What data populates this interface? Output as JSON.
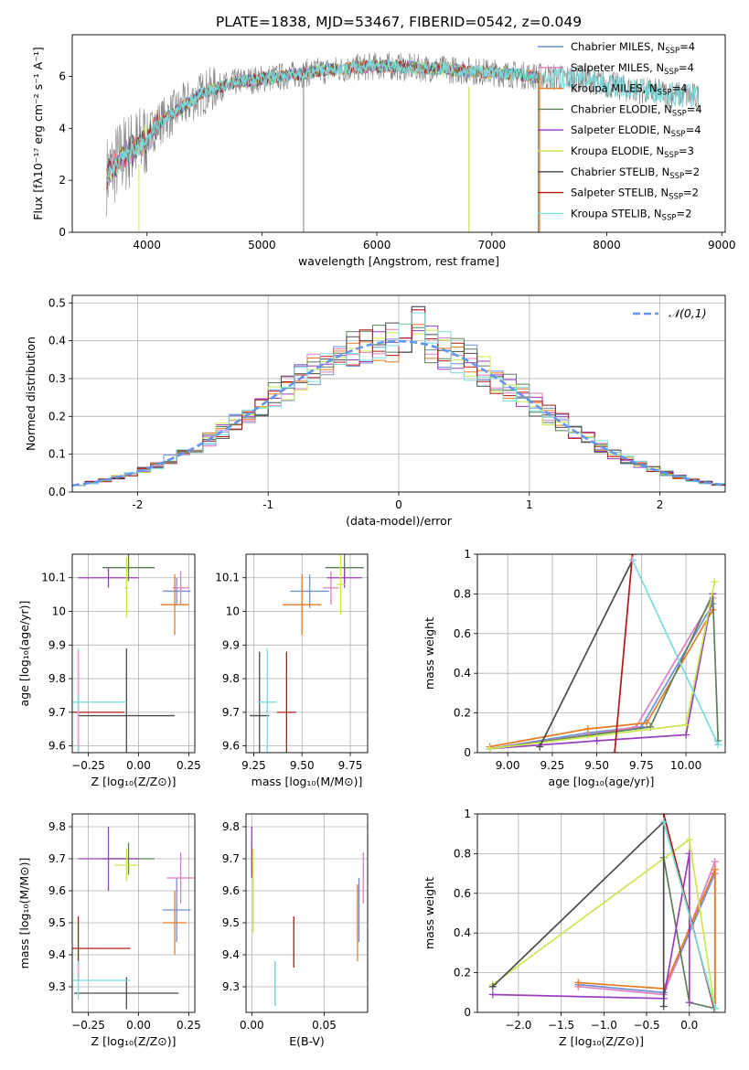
{
  "figure_title": "PLATE=1838, MJD=53467, FIBERID=0542, z=0.049",
  "colors": {
    "chabrier_miles": "#6f8fd8",
    "salpeter_miles": "#e07fc0",
    "kroupa_miles": "#e87a22",
    "chabrier_elodie": "#5a7f5a",
    "salpeter_elodie": "#9a3cbf",
    "kroupa_elodie": "#c8e850",
    "chabrier_stelib": "#4a4a4a",
    "salpeter_stelib": "#b01818",
    "kroupa_stelib": "#78dcdc",
    "data_grey": "#808080",
    "normal_curve": "#6495ed",
    "grid": "#b0b0b0"
  },
  "legend_entries": [
    {
      "base": "Chabrier MILES, N",
      "sub": "SSP",
      "val": "=4"
    },
    {
      "base": "Salpeter MILES, N",
      "sub": "SSP",
      "val": "=4"
    },
    {
      "base": "Kroupa MILES, N",
      "sub": "SSP",
      "val": "=4"
    },
    {
      "base": "Chabrier ELODIE, N",
      "sub": "SSP",
      "val": "=4"
    },
    {
      "base": "Salpeter ELODIE, N",
      "sub": "SSP",
      "val": "=4"
    },
    {
      "base": "Kroupa ELODIE, N",
      "sub": "SSP",
      "val": "=3"
    },
    {
      "base": "Chabrier STELIB, N",
      "sub": "SSP",
      "val": "=2"
    },
    {
      "base": "Salpeter STELIB, N",
      "sub": "SSP",
      "val": "=2"
    },
    {
      "base": "Kroupa STELIB, N",
      "sub": "SSP",
      "val": "=2"
    }
  ],
  "chart_data": [
    {
      "id": "spectrum",
      "type": "line",
      "xlabel": "wavelength [Angstrom, rest frame]",
      "ylabel": "Flux [fλ10⁻¹⁷ erg cm⁻² s⁻¹ A⁻¹]",
      "xlim": [
        3350,
        9030
      ],
      "ylim": [
        0,
        7.6
      ],
      "xticks": [
        4000,
        5000,
        6000,
        7000,
        8000,
        9000
      ],
      "yticks": [
        0,
        2,
        4,
        6
      ],
      "grid": false,
      "legend_position": "top-right",
      "data_x_range": [
        3650,
        8800
      ],
      "models_x_range": [
        3650,
        7420
      ],
      "continuum": [
        [
          3650,
          2.2
        ],
        [
          3800,
          3.0
        ],
        [
          3950,
          3.4
        ],
        [
          4100,
          4.2
        ],
        [
          4300,
          4.8
        ],
        [
          4500,
          5.4
        ],
        [
          4800,
          5.8
        ],
        [
          5100,
          5.95
        ],
        [
          5500,
          6.2
        ],
        [
          6000,
          6.4
        ],
        [
          6500,
          6.3
        ],
        [
          7000,
          6.15
        ],
        [
          7400,
          6.0
        ],
        [
          7800,
          5.9
        ],
        [
          8200,
          5.5
        ],
        [
          8600,
          5.3
        ],
        [
          8800,
          5.2
        ]
      ]
    },
    {
      "id": "residuals",
      "type": "histogram",
      "xlabel": "(data-model)/error",
      "ylabel": "Normed distribution",
      "xlim": [
        -2.5,
        2.5
      ],
      "ylim": [
        0,
        0.52
      ],
      "xticks": [
        -2,
        -1,
        0,
        1,
        2
      ],
      "yticks": [
        0.0,
        0.1,
        0.2,
        0.3,
        0.4,
        0.5
      ],
      "grid": true,
      "bin_width": 0.1,
      "legend": "𝒩(0,1)",
      "legend_position": "top-right"
    },
    {
      "id": "age_vs_Z",
      "type": "errorbar",
      "xlabel": "Z [log₁₀(Z/Z⊙)]",
      "ylabel": "age  [log₁₀(age/yr)]",
      "xlim": [
        -0.33,
        0.28
      ],
      "ylim": [
        9.58,
        10.17
      ],
      "xticks": [
        -0.25,
        0.0,
        0.25
      ],
      "xticklabels": [
        "−0.25",
        "0.00",
        "0.25"
      ],
      "yticks": [
        9.6,
        9.7,
        9.8,
        9.9,
        10.0,
        10.1
      ],
      "grid": true,
      "points": [
        {
          "m": "chabrier_miles",
          "x": 0.19,
          "y": 10.06,
          "xe": 0.07,
          "ye": 0.04
        },
        {
          "m": "salpeter_miles",
          "x": 0.21,
          "y": 10.07,
          "xe": 0.04,
          "ye": 0.05
        },
        {
          "m": "kroupa_miles",
          "x": 0.18,
          "y": 10.02,
          "xe": 0.07,
          "ye": 0.09
        },
        {
          "m": "chabrier_elodie",
          "x": -0.05,
          "y": 10.13,
          "xe": 0.13,
          "ye": 0.04
        },
        {
          "m": "salpeter_elodie",
          "x": -0.15,
          "y": 10.1,
          "xe": 0.15,
          "ye": 0.03
        },
        {
          "m": "kroupa_elodie",
          "x": -0.06,
          "y": 10.07,
          "xe": 0.01,
          "ye": 0.09
        },
        {
          "m": "chabrier_stelib",
          "x": -0.06,
          "y": 9.69,
          "xe": 0.24,
          "ye": 0.2
        },
        {
          "m": "salpeter_stelib",
          "x": -0.3,
          "y": 9.7,
          "xe": 0.23,
          "ye": 0.18
        },
        {
          "m": "kroupa_stelib",
          "x": -0.3,
          "y": 9.73,
          "xe": 0.24,
          "ye": 0.16
        }
      ]
    },
    {
      "id": "age_vs_mass",
      "type": "errorbar",
      "xlabel": "mass [log₁₀(M/M⊙)]",
      "ylabel": "",
      "xlim": [
        9.21,
        9.84
      ],
      "ylim": [
        9.58,
        10.17
      ],
      "xticks": [
        9.25,
        9.5,
        9.75
      ],
      "xticklabels": [
        "9.25",
        "9.50",
        "9.75"
      ],
      "yticks": [
        9.6,
        9.7,
        9.8,
        9.9,
        10.0,
        10.1
      ],
      "grid": true,
      "points": [
        {
          "m": "chabrier_miles",
          "x": 9.54,
          "y": 10.06,
          "xe": 0.1,
          "ye": 0.05
        },
        {
          "m": "salpeter_miles",
          "x": 9.65,
          "y": 10.07,
          "xe": 0.04,
          "ye": 0.05
        },
        {
          "m": "kroupa_miles",
          "x": 9.5,
          "y": 10.02,
          "xe": 0.1,
          "ye": 0.09
        },
        {
          "m": "chabrier_elodie",
          "x": 9.72,
          "y": 10.13,
          "xe": 0.1,
          "ye": 0.04
        },
        {
          "m": "salpeter_elodie",
          "x": 9.72,
          "y": 10.1,
          "xe": 0.09,
          "ye": 0.03
        },
        {
          "m": "kroupa_elodie",
          "x": 9.7,
          "y": 10.08,
          "xe": 0.02,
          "ye": 0.09
        },
        {
          "m": "chabrier_stelib",
          "x": 9.28,
          "y": 9.69,
          "xe": 0.05,
          "ye": 0.19
        },
        {
          "m": "salpeter_stelib",
          "x": 9.42,
          "y": 9.7,
          "xe": 0.05,
          "ye": 0.18
        },
        {
          "m": "kroupa_stelib",
          "x": 9.32,
          "y": 9.73,
          "xe": 0.05,
          "ye": 0.16
        }
      ]
    },
    {
      "id": "weight_vs_age",
      "type": "line",
      "xlabel": "age  [log₁₀(age/yr)]",
      "ylabel": "mass weight",
      "xlim": [
        8.83,
        10.22
      ],
      "ylim": [
        0,
        1.0
      ],
      "xticks": [
        9.0,
        9.25,
        9.5,
        9.75,
        10.0
      ],
      "xticklabels": [
        "9.00",
        "9.25",
        "9.50",
        "9.75",
        "10.00"
      ],
      "yticks": [
        0.0,
        0.2,
        0.4,
        0.6,
        0.8,
        1.0
      ],
      "grid": true,
      "series": [
        {
          "m": "chabrier_miles",
          "x": [
            8.9,
            9.45,
            9.75,
            10.15
          ],
          "y": [
            0.02,
            0.1,
            0.13,
            0.75
          ]
        },
        {
          "m": "salpeter_miles",
          "x": [
            8.9,
            9.45,
            9.72,
            10.15
          ],
          "y": [
            0.02,
            0.09,
            0.13,
            0.78
          ]
        },
        {
          "m": "kroupa_miles",
          "x": [
            8.9,
            9.45,
            9.78,
            10.15
          ],
          "y": [
            0.03,
            0.12,
            0.15,
            0.72
          ]
        },
        {
          "m": "chabrier_elodie",
          "x": [
            8.9,
            9.8,
            10.15,
            10.18
          ],
          "y": [
            0.02,
            0.13,
            0.8,
            0.06
          ]
        },
        {
          "m": "salpeter_elodie",
          "x": [
            8.9,
            9.5,
            10.0,
            10.15
          ],
          "y": [
            0.02,
            0.06,
            0.09,
            0.8
          ]
        },
        {
          "m": "kroupa_elodie",
          "x": [
            8.9,
            10.0,
            10.16
          ],
          "y": [
            0.02,
            0.14,
            0.86
          ]
        },
        {
          "m": "chabrier_stelib",
          "x": [
            9.18,
            9.7
          ],
          "y": [
            0.03,
            0.97
          ]
        },
        {
          "m": "salpeter_stelib",
          "x": [
            9.6,
            9.7
          ],
          "y": [
            0.0,
            1.0
          ]
        },
        {
          "m": "kroupa_stelib",
          "x": [
            9.7,
            10.18
          ],
          "y": [
            0.97,
            0.04
          ]
        }
      ]
    },
    {
      "id": "mass_vs_Z",
      "type": "errorbar",
      "xlabel": "Z [log₁₀(Z/Z⊙)]",
      "ylabel": "mass [log₁₀(M/M⊙)]",
      "xlim": [
        -0.33,
        0.28
      ],
      "ylim": [
        9.22,
        9.84
      ],
      "xticks": [
        -0.25,
        0.0,
        0.25
      ],
      "xticklabels": [
        "−0.25",
        "0.00",
        "0.25"
      ],
      "yticks": [
        9.3,
        9.4,
        9.5,
        9.6,
        9.7,
        9.8
      ],
      "grid": true,
      "points": [
        {
          "m": "chabrier_miles",
          "x": 0.19,
          "y": 9.54,
          "xe": 0.07,
          "ye": 0.1
        },
        {
          "m": "salpeter_miles",
          "x": 0.21,
          "y": 9.64,
          "xe": 0.07,
          "ye": 0.08
        },
        {
          "m": "kroupa_miles",
          "x": 0.18,
          "y": 9.5,
          "xe": 0.06,
          "ye": 0.1
        },
        {
          "m": "chabrier_elodie",
          "x": -0.05,
          "y": 9.7,
          "xe": 0.13,
          "ye": 0.05
        },
        {
          "m": "salpeter_elodie",
          "x": -0.15,
          "y": 9.7,
          "xe": 0.15,
          "ye": 0.1
        },
        {
          "m": "kroupa_elodie",
          "x": -0.06,
          "y": 9.68,
          "xe": 0.06,
          "ye": 0.05
        },
        {
          "m": "chabrier_stelib",
          "x": -0.06,
          "y": 9.28,
          "xe": 0.26,
          "ye": 0.05
        },
        {
          "m": "salpeter_stelib",
          "x": -0.3,
          "y": 9.42,
          "xe": 0.26,
          "ye": 0.1
        },
        {
          "m": "kroupa_stelib",
          "x": -0.3,
          "y": 9.32,
          "xe": 0.26,
          "ye": 0.06
        }
      ]
    },
    {
      "id": "mass_vs_ebv",
      "type": "errorbar",
      "xlabel": "E(B-V)",
      "ylabel": "",
      "xlim": [
        -0.004,
        0.08
      ],
      "ylim": [
        9.22,
        9.84
      ],
      "xticks": [
        0.0,
        0.05
      ],
      "xticklabels": [
        "0.00",
        "0.05"
      ],
      "yticks": [
        9.3,
        9.4,
        9.5,
        9.6,
        9.7,
        9.8
      ],
      "grid": true,
      "points": [
        {
          "m": "chabrier_miles",
          "x": 0.074,
          "y": 9.54,
          "xe": 0,
          "ye": 0.1
        },
        {
          "m": "salpeter_miles",
          "x": 0.077,
          "y": 9.64,
          "xe": 0,
          "ye": 0.08
        },
        {
          "m": "kroupa_miles",
          "x": 0.073,
          "y": 9.5,
          "xe": 0,
          "ye": 0.12
        },
        {
          "m": "chabrier_elodie",
          "x": 0.0,
          "y": 9.7,
          "xe": 0,
          "ye": 0.05
        },
        {
          "m": "salpeter_elodie",
          "x": 0.0,
          "y": 9.72,
          "xe": 0,
          "ye": 0.08
        },
        {
          "m": "kroupa_elodie",
          "x": 0.001,
          "y": 9.6,
          "xe": 0,
          "ye": 0.13
        },
        {
          "m": "chabrier_stelib",
          "x": 0.016,
          "y": 9.31,
          "xe": 0,
          "ye": 0.07
        },
        {
          "m": "salpeter_stelib",
          "x": 0.029,
          "y": 9.44,
          "xe": 0,
          "ye": 0.08
        },
        {
          "m": "kroupa_stelib",
          "x": 0.016,
          "y": 9.31,
          "xe": 0,
          "ye": 0.07
        }
      ]
    },
    {
      "id": "weight_vs_Z",
      "type": "line",
      "xlabel": "Z [log₁₀(Z/Z⊙)]",
      "ylabel": "mass weight",
      "xlim": [
        -2.48,
        0.42
      ],
      "ylim": [
        0,
        1.0
      ],
      "xticks": [
        -2.0,
        -1.5,
        -1.0,
        -0.5,
        0.0
      ],
      "xticklabels": [
        "−2.0",
        "−1.5",
        "−1.0",
        "−0.5",
        "0.0"
      ],
      "yticks": [
        0.0,
        0.2,
        0.4,
        0.6,
        0.8,
        1.0
      ],
      "grid": true,
      "series": [
        {
          "m": "chabrier_miles",
          "x": [
            -1.3,
            -0.3,
            0.3,
            0.3
          ],
          "y": [
            0.14,
            0.1,
            0.7,
            0.02
          ]
        },
        {
          "m": "salpeter_miles",
          "x": [
            -1.3,
            -0.3,
            0.3,
            0.3
          ],
          "y": [
            0.13,
            0.09,
            0.76,
            0.02
          ]
        },
        {
          "m": "kroupa_miles",
          "x": [
            -1.3,
            -0.3,
            0.3,
            0.3
          ],
          "y": [
            0.15,
            0.12,
            0.72,
            0.02
          ]
        },
        {
          "m": "chabrier_elodie",
          "x": [
            -0.3,
            0.0,
            0.3
          ],
          "y": [
            0.78,
            0.05,
            0.02
          ]
        },
        {
          "m": "salpeter_elodie",
          "x": [
            -2.3,
            -0.3,
            0.0,
            0.0
          ],
          "y": [
            0.09,
            0.07,
            0.8,
            0.05
          ]
        },
        {
          "m": "kroupa_elodie",
          "x": [
            -2.3,
            0.0,
            0.3
          ],
          "y": [
            0.14,
            0.87,
            0.02
          ]
        },
        {
          "m": "chabrier_stelib",
          "x": [
            -0.3,
            -0.3,
            -2.3
          ],
          "y": [
            0.03,
            0.96,
            0.13
          ]
        },
        {
          "m": "salpeter_stelib",
          "x": [
            -0.3,
            0.3
          ],
          "y": [
            1.0,
            0.0
          ]
        },
        {
          "m": "kroupa_stelib",
          "x": [
            -0.3,
            0.3
          ],
          "y": [
            0.96,
            0.02
          ]
        }
      ]
    }
  ]
}
